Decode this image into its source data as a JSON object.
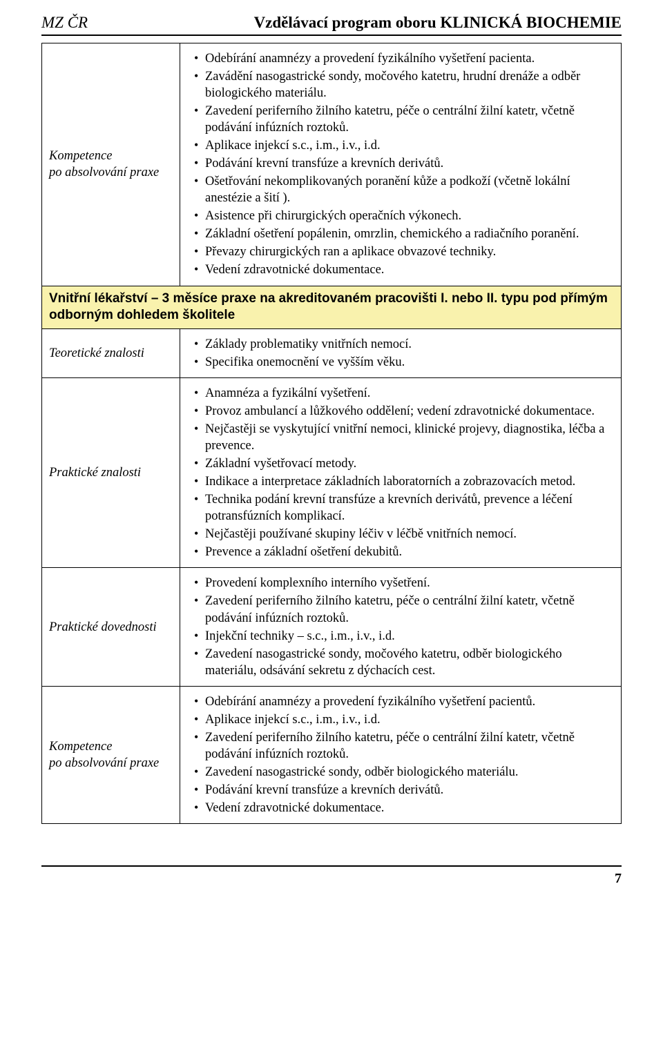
{
  "header": {
    "left": "MZ ČR",
    "right": "Vzdělávací program oboru KLINICKÁ BIOCHEMIE"
  },
  "rows": [
    {
      "label": "Kompetence\npo absolvování praxe",
      "items": [
        "Odebírání anamnézy a provedení fyzikálního vyšetření pacienta.",
        "Zavádění nasogastrické sondy, močového katetru, hrudní drenáže a odběr biologického materiálu.",
        "Zavedení periferního žilního katetru, péče o centrální žilní katetr, včetně podávání infúzních roztoků.",
        "Aplikace injekcí s.c., i.m., i.v., i.d.",
        "Podávání krevní transfúze a krevních derivátů.",
        "Ošetřování  nekomplikovaných poranění kůže a podkoží (včetně lokální anestézie a šití ).",
        "Asistence při chirurgických operačních výkonech.",
        "Základní ošetření popálenin, omrzlin, chemického a radiačního poranění.",
        "Převazy chirurgických ran a aplikace obvazové techniky.",
        "Vedení zdravotnické dokumentace."
      ]
    }
  ],
  "section_heading": "Vnitřní lékařství – 3 měsíce praxe na akreditovaném pracovišti I. nebo II. typu pod přímým odborným dohledem školitele",
  "rows2": [
    {
      "label": "Teoretické znalosti",
      "items": [
        "Základy problematiky vnitřních nemocí.",
        "Specifika onemocnění ve vyšším věku."
      ]
    },
    {
      "label": "Praktické znalosti",
      "items": [
        "Anamnéza a fyzikální vyšetření.",
        "Provoz ambulancí a lůžkového oddělení; vedení zdravotnické dokumentace.",
        "Nejčastěji se vyskytující vnitřní nemoci, klinické projevy, diagnostika, léčba a prevence.",
        "Základní vyšetřovací metody.",
        "Indikace a interpretace základních laboratorních a zobrazovacích metod.",
        "Technika podání krevní transfúze a krevních derivátů, prevence a léčení potransfúzních komplikací.",
        "Nejčastěji používané skupiny léčiv v léčbě vnitřních nemocí.",
        "Prevence a základní ošetření dekubitů."
      ]
    },
    {
      "label": "Praktické dovednosti",
      "items": [
        "Provedení komplexního interního vyšetření.",
        "Zavedení periferního žilního katetru, péče o centrální žilní katetr, včetně podávání infúzních roztoků.",
        "Injekční techniky – s.c., i.m., i.v., i.d.",
        "Zavedení nasogastrické sondy, močového katetru, odběr biologického materiálu, odsávání sekretu z dýchacích cest."
      ]
    },
    {
      "label": "Kompetence\npo absolvování praxe",
      "items": [
        "Odebírání anamnézy a provedení fyzikálního vyšetření pacientů.",
        "Aplikace injekcí s.c., i.m., i.v., i.d.",
        "Zavedení periferního žilního katetru, péče o centrální žilní katetr, včetně podávání infúzních roztoků.",
        "Zavedení nasogastrické sondy, odběr biologického materiálu.",
        "Podávání krevní transfúze a krevních derivátů.",
        "Vedení zdravotnické dokumentace."
      ]
    }
  ],
  "page_number": "7",
  "colors": {
    "section_bg": "#f9f2ad",
    "text": "#000000",
    "bg": "#ffffff"
  }
}
